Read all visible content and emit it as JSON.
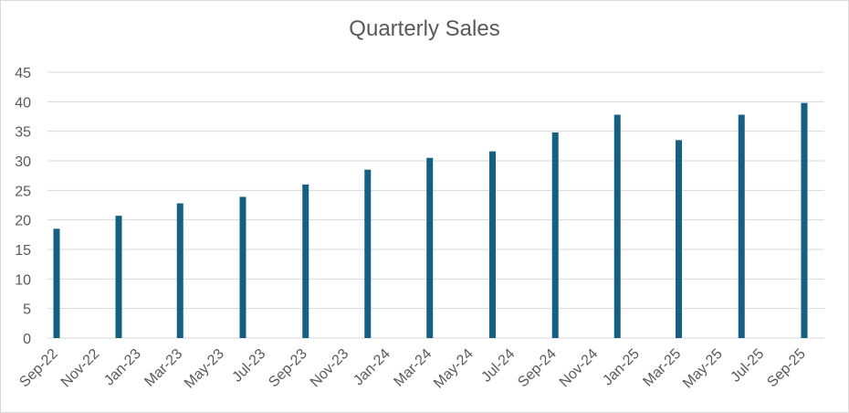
{
  "chart_data": {
    "type": "bar",
    "title": "Quarterly Sales",
    "xlabel": "",
    "ylabel": "",
    "ylim": [
      0,
      45
    ],
    "yticks": [
      0,
      5,
      10,
      15,
      20,
      25,
      30,
      35,
      40,
      45
    ],
    "x_tick_labels": [
      "Sep-22",
      "Nov-22",
      "Jan-23",
      "Mar-23",
      "May-23",
      "Jul-23",
      "Sep-23",
      "Nov-23",
      "Jan-24",
      "Mar-24",
      "May-24",
      "Jul-24",
      "Sep-24",
      "Nov-24",
      "Jan-25",
      "Mar-25",
      "May-25",
      "Jul-25",
      "Sep-25"
    ],
    "x_range": [
      "2022-09-01",
      "2025-09-01"
    ],
    "points": [
      {
        "date": "2022-09-01",
        "value": 18.5
      },
      {
        "date": "2022-12-01",
        "value": 20.7
      },
      {
        "date": "2023-03-01",
        "value": 22.8
      },
      {
        "date": "2023-06-01",
        "value": 23.9
      },
      {
        "date": "2023-09-01",
        "value": 26.0
      },
      {
        "date": "2023-12-01",
        "value": 28.5
      },
      {
        "date": "2024-03-01",
        "value": 30.5
      },
      {
        "date": "2024-06-01",
        "value": 31.6
      },
      {
        "date": "2024-09-01",
        "value": 34.8
      },
      {
        "date": "2024-12-01",
        "value": 37.8
      },
      {
        "date": "2025-03-01",
        "value": 33.5
      },
      {
        "date": "2025-06-01",
        "value": 37.8
      },
      {
        "date": "2025-09-01",
        "value": 39.8
      }
    ],
    "grid": true,
    "legend": "none",
    "colors": {
      "bar": "#156082",
      "grid": "#d9d9d9",
      "text": "#595959"
    }
  }
}
